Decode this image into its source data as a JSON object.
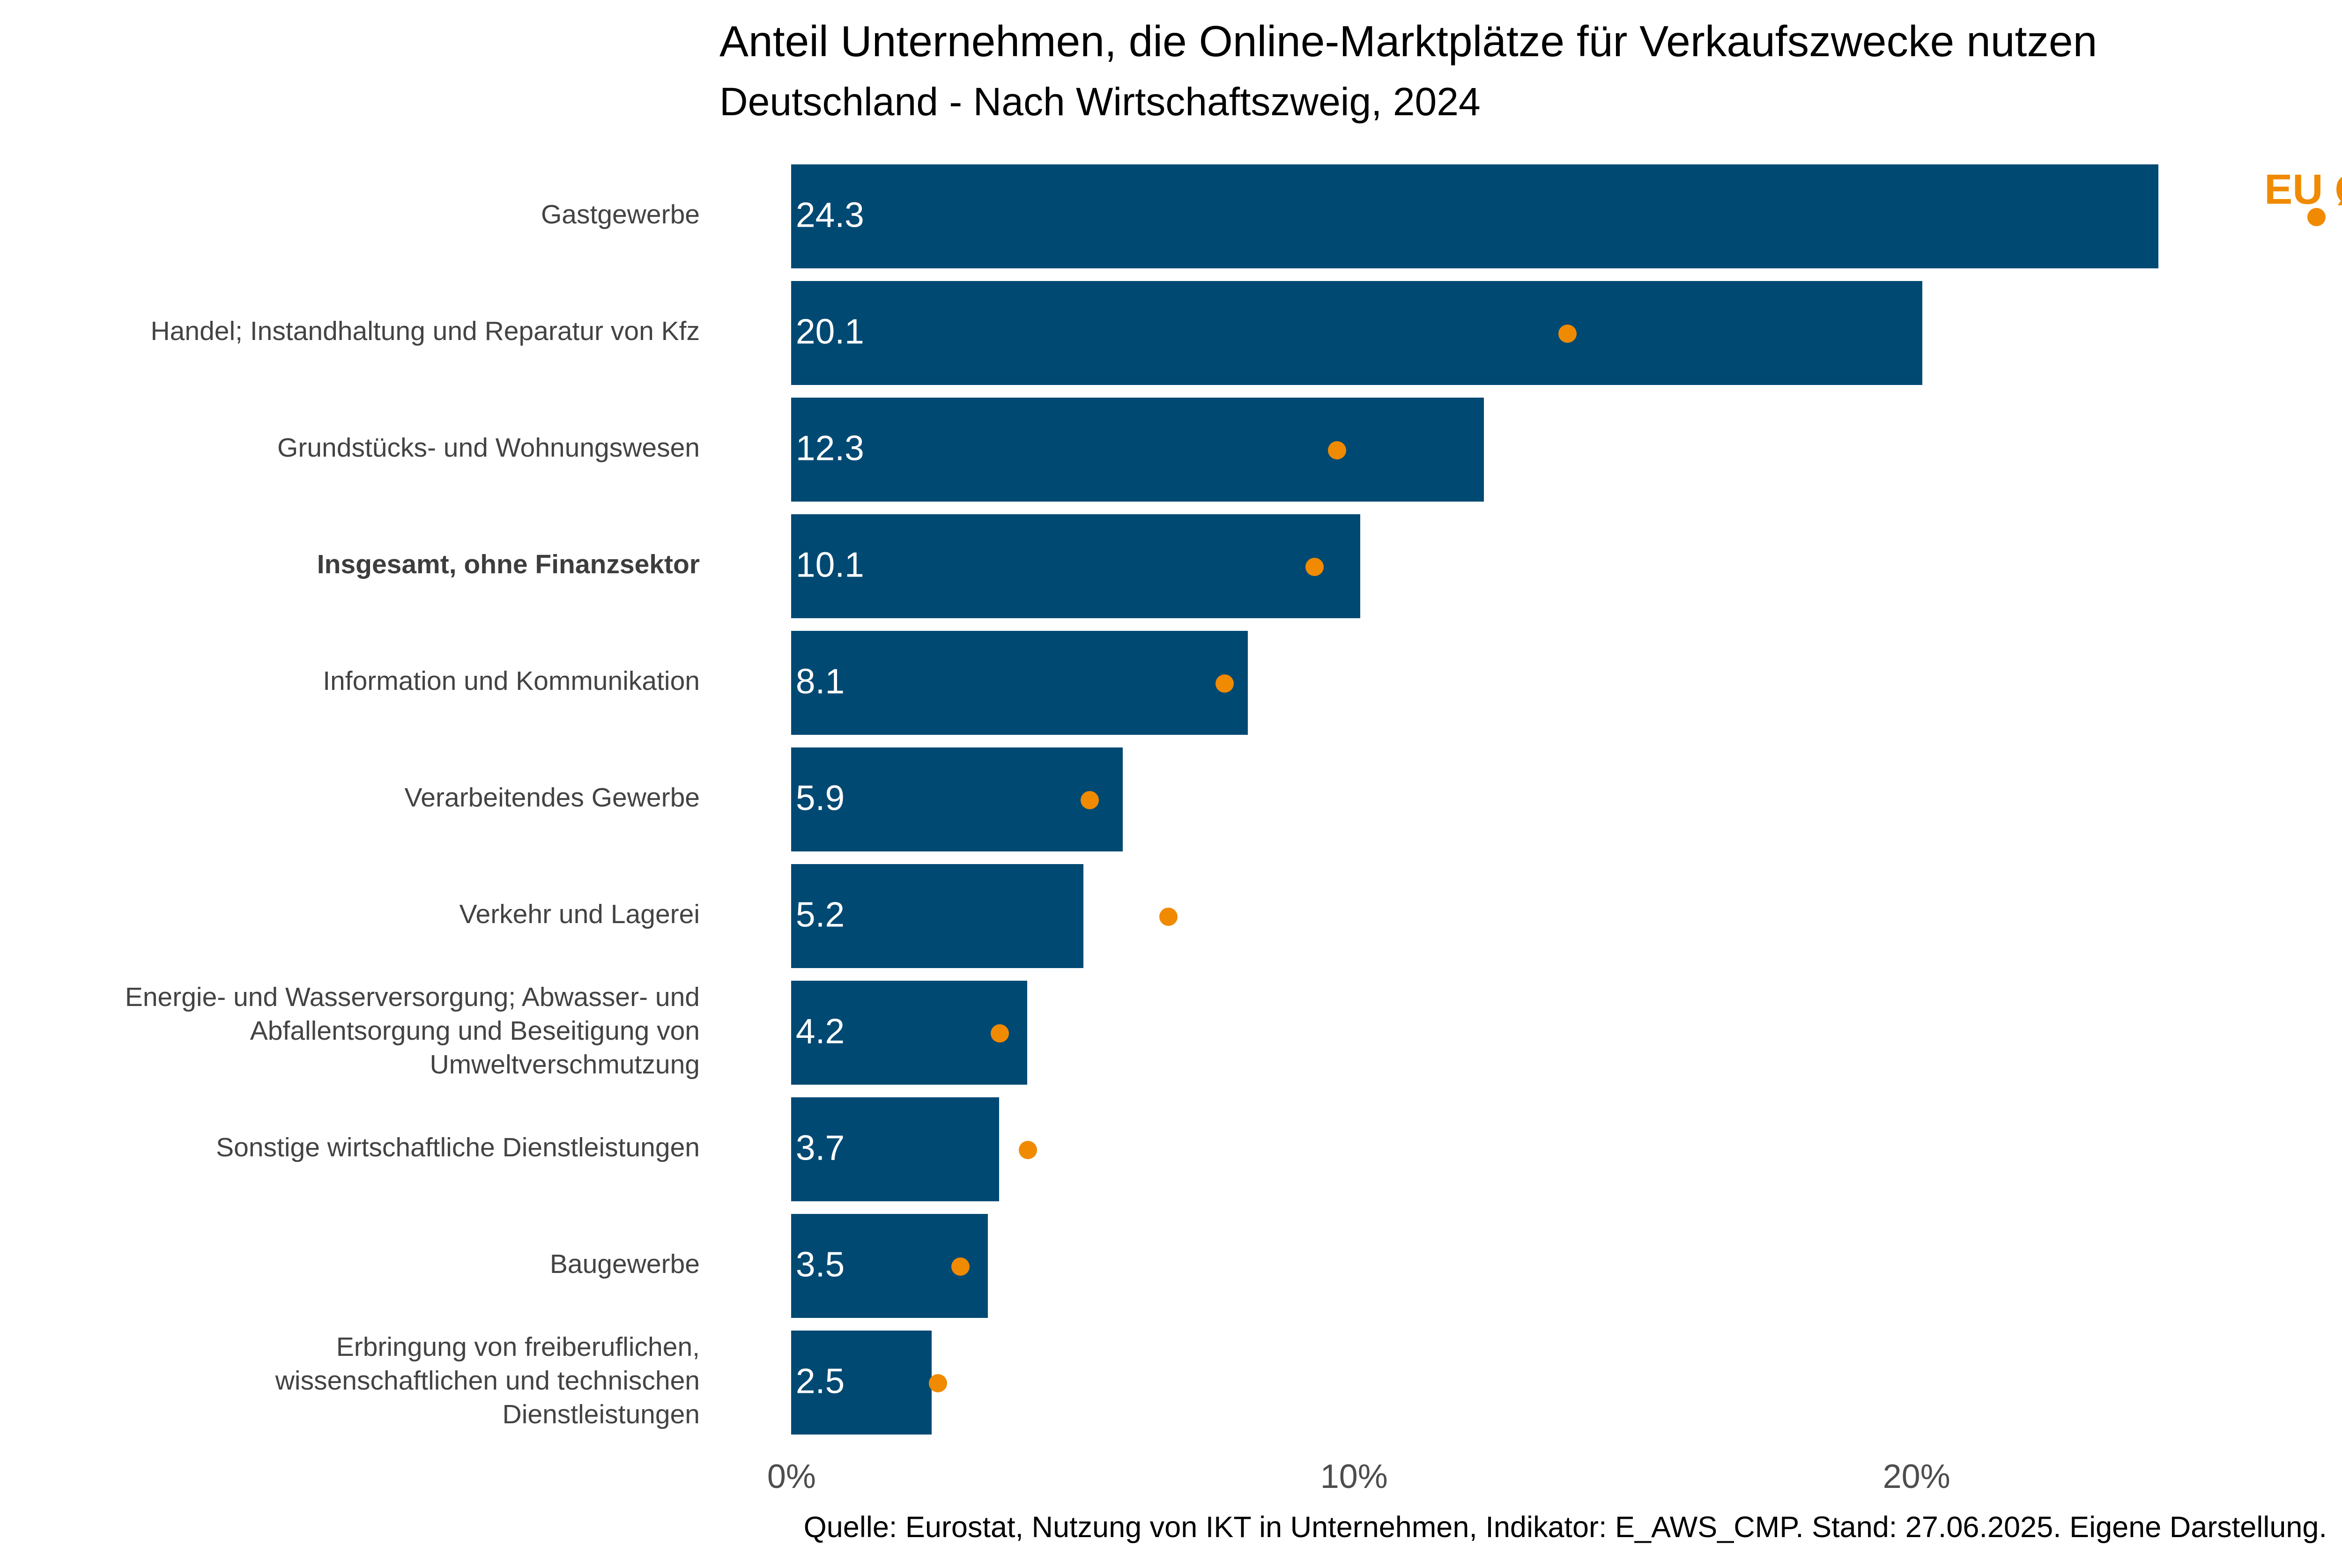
{
  "title": "Anteil Unternehmen, die Online-Marktplätze für Verkaufszwecke nutzen",
  "subtitle": "Deutschland - Nach Wirtschaftszweig, 2024",
  "legend": {
    "label": "EU Ø"
  },
  "source": "Quelle: Eurostat, Nutzung von IKT in Unternehmen, Indikator: E_AWS_CMP. Stand: 27.06.2025. Eigene Darstellung.",
  "colors": {
    "bar": "#004973",
    "eu_dot": "#F08A00",
    "category_label": "#434343",
    "tick_label": "#4d4d4d",
    "value_label": "#ffffff",
    "title": "#000000",
    "source": "#000000"
  },
  "x_axis": {
    "tick_labels": [
      "0%",
      "10%",
      "20%"
    ],
    "tick_values": [
      0,
      10,
      20
    ]
  },
  "chart_data": {
    "type": "bar",
    "orientation": "horizontal",
    "title": "Anteil Unternehmen, die Online-Marktplätze für Verkaufszwecke nutzen",
    "subtitle": "Deutschland - Nach Wirtschaftszweig, 2024",
    "categories": [
      "Gastgewerbe",
      "Handel; Instandhaltung und Reparatur von Kfz",
      "Grundstücks- und Wohnungswesen",
      "Insgesamt, ohne Finanzsektor",
      "Information und Kommunikation",
      "Verarbeitendes Gewerbe",
      "Verkehr und Lagerei",
      "Energie- und Wasserversorgung; Abwasser- und Abfallentsorgung und Beseitigung von Umweltverschmutzung",
      "Sonstige wirtschaftliche Dienstleistungen",
      "Baugewerbe",
      "Erbringung von freiberuflichen, wissenschaftlichen und technischen Dienstleistungen"
    ],
    "category_lines": [
      [
        "Gastgewerbe"
      ],
      [
        "Handel; Instandhaltung und Reparatur von Kfz"
      ],
      [
        "Grundstücks- und Wohnungswesen"
      ],
      [
        "Insgesamt, ohne Finanzsektor"
      ],
      [
        "Information und Kommunikation"
      ],
      [
        "Verarbeitendes Gewerbe"
      ],
      [
        "Verkehr und Lagerei"
      ],
      [
        "Energie- und Wasserversorgung; Abwasser- und",
        "Abfallentsorgung und Beseitigung von",
        "Umweltverschmutzung"
      ],
      [
        "Sonstige wirtschaftliche Dienstleistungen"
      ],
      [
        "Baugewerbe"
      ],
      [
        "Erbringung von freiberuflichen,",
        "wissenschaftlichen und technischen",
        "Dienstleistungen"
      ]
    ],
    "bold_category_index": 3,
    "series": [
      {
        "name": "Deutschland",
        "type": "bar",
        "values": [
          24.3,
          20.1,
          12.3,
          10.1,
          8.1,
          5.9,
          5.2,
          4.2,
          3.7,
          3.5,
          2.5
        ]
      },
      {
        "name": "EU Ø",
        "type": "point",
        "estimated_from_pixels": true,
        "values": [
          27.1,
          13.8,
          9.7,
          9.3,
          7.7,
          5.3,
          6.7,
          3.7,
          4.2,
          3.0,
          2.6
        ]
      }
    ],
    "value_labels_shown": true,
    "xlabel": "",
    "ylabel": "",
    "xlim": [
      0,
      27.4
    ],
    "grid": false,
    "legend_position": "top-right"
  }
}
